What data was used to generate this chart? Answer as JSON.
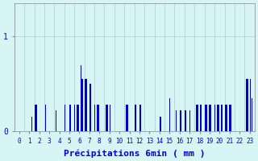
{
  "xlabel": "Précipitations 6min ( mm )",
  "bar_color": "#0000cc",
  "background_color": "#d8f5f5",
  "grid_color": "#aacccc",
  "axis_color": "#888888",
  "text_color": "#0000cc",
  "ylim": [
    0,
    1.35
  ],
  "yticks": [
    0,
    1
  ],
  "num_slots": 240,
  "slots_per_hour": 10,
  "bar_width": 0.6,
  "values": [
    0,
    0,
    0,
    0,
    0,
    0,
    0,
    0,
    0,
    0,
    0,
    0,
    0,
    0,
    0,
    0,
    0,
    0.15,
    0,
    0,
    0.28,
    0.28,
    0.28,
    0.28,
    0.28,
    0,
    0,
    0,
    0,
    0,
    0,
    0.28,
    0.28,
    0,
    0,
    0,
    0,
    0,
    0,
    0,
    0.22,
    0.22,
    0,
    0,
    0,
    0,
    0,
    0,
    0,
    0,
    0.28,
    0,
    0,
    0,
    0,
    0.28,
    0.28,
    0.28,
    0,
    0,
    0.28,
    0.28,
    0.28,
    0.28,
    0.28,
    0.7,
    0.7,
    0.55,
    0.55,
    0,
    0.55,
    0.55,
    0.55,
    0.5,
    0,
    0.5,
    0.5,
    0.5,
    0,
    0,
    0.28,
    0.28,
    0.28,
    0.28,
    0.28,
    0.28,
    0,
    0,
    0,
    0,
    0.28,
    0.28,
    0.28,
    0.28,
    0.28,
    0.28,
    0,
    0,
    0,
    0,
    0,
    0,
    0,
    0,
    0,
    0,
    0,
    0,
    0,
    0,
    0.28,
    0.28,
    0.28,
    0.28,
    0.28,
    0,
    0,
    0,
    0,
    0,
    0.28,
    0.28,
    0,
    0,
    0,
    0.28,
    0.28,
    0,
    0,
    0,
    0,
    0,
    0,
    0,
    0,
    0,
    0,
    0,
    0,
    0,
    0,
    0,
    0,
    0,
    0,
    0.15,
    0.15,
    0,
    0,
    0,
    0,
    0,
    0,
    0,
    0,
    0.35,
    0.35,
    0,
    0,
    0,
    0.22,
    0.22,
    0,
    0,
    0,
    0.22,
    0.22,
    0,
    0,
    0,
    0.22,
    0.22,
    0,
    0,
    0,
    0.22,
    0.22,
    0,
    0,
    0,
    0.28,
    0.28,
    0.28,
    0.28,
    0.28,
    0.28,
    0.28,
    0,
    0,
    0,
    0.28,
    0.28,
    0.28,
    0.28,
    0.28,
    0.28,
    0.28,
    0,
    0,
    0,
    0.28,
    0.28,
    0.28,
    0.28,
    0.28,
    0.28,
    0.28,
    0.28,
    0,
    0,
    0.28,
    0.28,
    0.28,
    0.28,
    0.28,
    0.28,
    0.28,
    0,
    0,
    0,
    0,
    0,
    0,
    0,
    0,
    0,
    0,
    0,
    0,
    0,
    0.55,
    0.55,
    0.55,
    0.55,
    0.55,
    0.55,
    0,
    0.35,
    0.35,
    0
  ]
}
